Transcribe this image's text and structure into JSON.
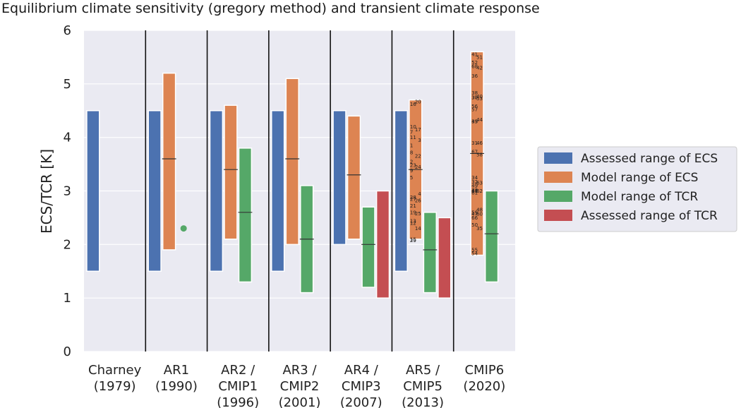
{
  "chart_data": {
    "type": "bar",
    "title": "Equilibrium climate sensitivity (gregory method) and transient climate response",
    "ylabel": "ECS/TCR [K]",
    "xlabel": "",
    "ylim": [
      0,
      6
    ],
    "yticks": [
      "0",
      "1",
      "2",
      "3",
      "4",
      "5",
      "6"
    ],
    "grid": true,
    "legend_position": "center-right",
    "categories": [
      [
        "Charney",
        "(1979)"
      ],
      [
        "AR1",
        "(1990)"
      ],
      [
        "AR2 /",
        "CMIP1",
        "(1996)"
      ],
      [
        "AR3 /",
        "CMIP2",
        "(2001)"
      ],
      [
        "AR4 /",
        "CMIP3",
        "(2007)"
      ],
      [
        "AR5 /",
        "CMIP5",
        "(2013)"
      ],
      [
        "CMIP6",
        "(2020)"
      ]
    ],
    "series": [
      {
        "name": "Assessed range of ECS",
        "color": "#4c72b0",
        "ranges": [
          [
            1.5,
            4.5
          ],
          [
            1.5,
            4.5
          ],
          [
            1.5,
            4.5
          ],
          [
            1.5,
            4.5
          ],
          [
            2.0,
            4.5
          ],
          [
            1.5,
            4.5
          ],
          null
        ],
        "medians": [
          null,
          null,
          null,
          null,
          null,
          null,
          null
        ]
      },
      {
        "name": "Model range of ECS",
        "color": "#dd8452",
        "ranges": [
          null,
          [
            1.9,
            5.2
          ],
          [
            2.1,
            4.6
          ],
          [
            2.0,
            5.1
          ],
          [
            2.1,
            4.4
          ],
          [
            2.1,
            4.7
          ],
          [
            1.8,
            5.6
          ]
        ],
        "medians": [
          null,
          3.6,
          3.4,
          3.6,
          3.3,
          3.4,
          3.7
        ]
      },
      {
        "name": "Model range of TCR",
        "color": "#55a868",
        "ranges": [
          null,
          null,
          [
            1.3,
            3.8
          ],
          [
            1.1,
            3.1
          ],
          [
            1.2,
            2.7
          ],
          [
            1.1,
            2.6
          ],
          [
            1.3,
            3.0
          ]
        ],
        "medians": [
          null,
          null,
          2.6,
          2.1,
          2.0,
          1.9,
          2.2
        ]
      },
      {
        "name": "Assessed range of TCR",
        "color": "#c44e52",
        "ranges": [
          null,
          null,
          null,
          null,
          [
            1.0,
            3.0
          ],
          [
            1.0,
            2.5
          ],
          null
        ],
        "medians": [
          null,
          null,
          null,
          null,
          null,
          null,
          null
        ]
      }
    ],
    "points": [
      {
        "category": 1,
        "series": "Model range of TCR",
        "value": 2.3
      }
    ],
    "model_labels": {
      "AR5": [
        {
          "text": "20",
          "y": 4.67,
          "side": "right"
        },
        {
          "text": "16",
          "y": 4.62,
          "side": "left"
        },
        {
          "text": "10",
          "y": 4.2,
          "side": "left"
        },
        {
          "text": "17",
          "y": 4.15,
          "side": "right"
        },
        {
          "text": "7",
          "y": 4.1,
          "side": "left"
        },
        {
          "text": "11",
          "y": 4.0,
          "side": "left"
        },
        {
          "text": "3",
          "y": 3.95,
          "side": "right"
        },
        {
          "text": "1",
          "y": 3.85,
          "side": "left"
        },
        {
          "text": "8",
          "y": 3.72,
          "side": "left"
        },
        {
          "text": "22",
          "y": 3.65,
          "side": "right"
        },
        {
          "text": "2",
          "y": 3.55,
          "side": "left"
        },
        {
          "text": "23",
          "y": 3.48,
          "side": "left"
        },
        {
          "text": "24",
          "y": 3.45,
          "side": "right"
        },
        {
          "text": "9",
          "y": 3.38,
          "side": "left"
        },
        {
          "text": "5",
          "y": 3.25,
          "side": "left"
        },
        {
          "text": "4",
          "y": 2.95,
          "side": "right"
        },
        {
          "text": "28",
          "y": 2.88,
          "side": "left"
        },
        {
          "text": "27",
          "y": 2.85,
          "side": "left"
        },
        {
          "text": "26",
          "y": 2.82,
          "side": "right"
        },
        {
          "text": "21",
          "y": 2.72,
          "side": "left"
        },
        {
          "text": "19",
          "y": 2.6,
          "side": "left"
        },
        {
          "text": "25",
          "y": 2.58,
          "side": "right"
        },
        {
          "text": "13",
          "y": 2.44,
          "side": "left"
        },
        {
          "text": "12",
          "y": 2.4,
          "side": "left"
        },
        {
          "text": "14",
          "y": 2.3,
          "side": "right"
        },
        {
          "text": "15",
          "y": 2.1,
          "side": "left"
        },
        {
          "text": "29",
          "y": 2.08,
          "side": "left"
        }
      ],
      "CMIP6": [
        {
          "text": "41",
          "y": 5.55,
          "side": "left"
        },
        {
          "text": "51",
          "y": 5.5,
          "side": "right"
        },
        {
          "text": "52",
          "y": 5.4,
          "side": "left"
        },
        {
          "text": "68",
          "y": 5.33,
          "side": "left"
        },
        {
          "text": "42",
          "y": 5.3,
          "side": "right"
        },
        {
          "text": "36",
          "y": 5.15,
          "side": "left"
        },
        {
          "text": "38",
          "y": 4.83,
          "side": "left"
        },
        {
          "text": "40",
          "y": 4.77,
          "side": "right"
        },
        {
          "text": "30",
          "y": 4.75,
          "side": "left"
        },
        {
          "text": "37",
          "y": 4.75,
          "side": "left"
        },
        {
          "text": "53",
          "y": 4.73,
          "side": "right"
        },
        {
          "text": "56",
          "y": 4.58,
          "side": "left"
        },
        {
          "text": "57",
          "y": 4.52,
          "side": "left"
        },
        {
          "text": "43",
          "y": 4.3,
          "side": "left"
        },
        {
          "text": "39",
          "y": 4.3,
          "side": "left"
        },
        {
          "text": "44",
          "y": 4.33,
          "side": "right"
        },
        {
          "text": "31",
          "y": 3.9,
          "side": "left"
        },
        {
          "text": "46",
          "y": 3.9,
          "side": "right"
        },
        {
          "text": "67",
          "y": 3.73,
          "side": "left"
        },
        {
          "text": "58",
          "y": 3.68,
          "side": "right"
        },
        {
          "text": "34",
          "y": 3.25,
          "side": "left"
        },
        {
          "text": "32",
          "y": 3.17,
          "side": "left"
        },
        {
          "text": "63",
          "y": 3.15,
          "side": "right"
        },
        {
          "text": "49",
          "y": 3.1,
          "side": "left"
        },
        {
          "text": "33",
          "y": 3.02,
          "side": "left"
        },
        {
          "text": "64",
          "y": 3.0,
          "side": "left"
        },
        {
          "text": "45",
          "y": 3.0,
          "side": "left"
        },
        {
          "text": "62",
          "y": 3.0,
          "side": "right"
        },
        {
          "text": "61",
          "y": 2.97,
          "side": "left"
        },
        {
          "text": "48",
          "y": 2.65,
          "side": "right"
        },
        {
          "text": "59",
          "y": 2.6,
          "side": "left"
        },
        {
          "text": "47",
          "y": 2.57,
          "side": "left"
        },
        {
          "text": "60",
          "y": 2.57,
          "side": "right"
        },
        {
          "text": "66",
          "y": 2.5,
          "side": "left"
        },
        {
          "text": "50",
          "y": 2.37,
          "side": "left"
        },
        {
          "text": "35",
          "y": 2.3,
          "side": "right"
        },
        {
          "text": "55",
          "y": 1.9,
          "side": "left"
        },
        {
          "text": "54",
          "y": 1.83,
          "side": "left"
        }
      ]
    }
  }
}
